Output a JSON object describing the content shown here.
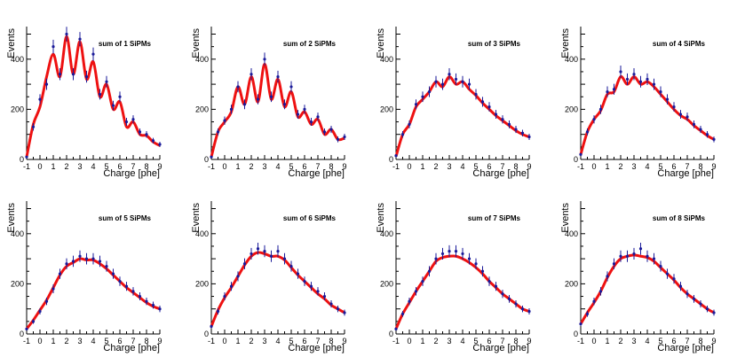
{
  "chart_data": [
    {
      "type": "line",
      "title": "sum of 1 SiPMs",
      "xlabel": "Charge [phe]",
      "ylabel": "Events",
      "xlim": [
        -1,
        9
      ],
      "ylim": [
        0,
        530
      ],
      "x": [
        -1.0,
        -0.5,
        0.0,
        0.5,
        1.0,
        1.5,
        2.0,
        2.5,
        3.0,
        3.5,
        4.0,
        4.5,
        5.0,
        5.5,
        6.0,
        6.5,
        7.0,
        7.5,
        8.0,
        8.5,
        9.0
      ],
      "series": [
        {
          "name": "data",
          "values": [
            10,
            130,
            240,
            300,
            450,
            340,
            500,
            340,
            480,
            330,
            420,
            260,
            310,
            215,
            250,
            150,
            160,
            110,
            100,
            75,
            60
          ]
        },
        {
          "name": "fit",
          "values": [
            10,
            140,
            210,
            330,
            420,
            330,
            490,
            340,
            470,
            320,
            390,
            250,
            300,
            200,
            230,
            130,
            150,
            100,
            95,
            70,
            55
          ]
        }
      ]
    },
    {
      "type": "line",
      "title": "sum of 2 SiPMs",
      "xlabel": "Charge [phe]",
      "ylabel": "Events",
      "xlim": [
        -1,
        9
      ],
      "ylim": [
        0,
        530
      ],
      "x": [
        -1.0,
        -0.5,
        0.0,
        0.5,
        1.0,
        1.5,
        2.0,
        2.5,
        3.0,
        3.5,
        4.0,
        4.5,
        5.0,
        5.5,
        6.0,
        6.5,
        7.0,
        7.5,
        8.0,
        8.5,
        9.0
      ],
      "series": [
        {
          "name": "data",
          "values": [
            10,
            110,
            155,
            200,
            290,
            220,
            340,
            240,
            400,
            250,
            330,
            220,
            290,
            180,
            200,
            150,
            170,
            110,
            120,
            80,
            90
          ]
        },
        {
          "name": "fit",
          "values": [
            10,
            110,
            150,
            190,
            290,
            220,
            330,
            230,
            380,
            240,
            320,
            210,
            270,
            170,
            190,
            140,
            160,
            100,
            120,
            80,
            85
          ]
        }
      ]
    },
    {
      "type": "line",
      "title": "sum of 3 SiPMs",
      "xlabel": "Charge [phe]",
      "ylabel": "Events",
      "xlim": [
        -1,
        9
      ],
      "ylim": [
        0,
        530
      ],
      "x": [
        -1.0,
        -0.5,
        0.0,
        0.5,
        1.0,
        1.5,
        2.0,
        2.5,
        3.0,
        3.5,
        4.0,
        4.5,
        5.0,
        5.5,
        6.0,
        6.5,
        7.0,
        7.5,
        8.0,
        8.5,
        9.0
      ],
      "series": [
        {
          "name": "data",
          "values": [
            15,
            100,
            140,
            220,
            250,
            270,
            310,
            300,
            340,
            320,
            310,
            300,
            260,
            230,
            210,
            180,
            160,
            140,
            120,
            105,
            90
          ]
        },
        {
          "name": "fit",
          "values": [
            12,
            100,
            140,
            210,
            240,
            270,
            310,
            290,
            330,
            300,
            310,
            280,
            255,
            225,
            200,
            175,
            155,
            135,
            115,
            100,
            90
          ]
        }
      ]
    },
    {
      "type": "line",
      "title": "sum of 4 SiPMs",
      "xlabel": "Charge [phe]",
      "ylabel": "Events",
      "xlim": [
        -1,
        9
      ],
      "ylim": [
        0,
        530
      ],
      "x": [
        -1.0,
        -0.5,
        0.0,
        0.5,
        1.0,
        1.5,
        2.0,
        2.5,
        3.0,
        3.5,
        4.0,
        4.5,
        5.0,
        5.5,
        6.0,
        6.5,
        7.0,
        7.5,
        8.0,
        8.5,
        9.0
      ],
      "series": [
        {
          "name": "data",
          "values": [
            20,
            110,
            160,
            200,
            270,
            280,
            350,
            320,
            340,
            310,
            320,
            300,
            270,
            240,
            210,
            180,
            170,
            140,
            120,
            100,
            80
          ]
        },
        {
          "name": "fit",
          "values": [
            20,
            110,
            160,
            195,
            260,
            270,
            330,
            300,
            330,
            300,
            310,
            290,
            260,
            230,
            200,
            175,
            160,
            135,
            115,
            95,
            80
          ]
        }
      ]
    },
    {
      "type": "line",
      "title": "sum of 5 SiPMs",
      "xlabel": "Charge [phe]",
      "ylabel": "Events",
      "xlim": [
        -1,
        9
      ],
      "ylim": [
        0,
        530
      ],
      "x": [
        -1.0,
        -0.5,
        0.0,
        0.5,
        1.0,
        1.5,
        2.0,
        2.5,
        3.0,
        3.5,
        4.0,
        4.5,
        5.0,
        5.5,
        6.0,
        6.5,
        7.0,
        7.5,
        8.0,
        8.5,
        9.0
      ],
      "series": [
        {
          "name": "data",
          "values": [
            20,
            50,
            90,
            130,
            180,
            240,
            280,
            290,
            310,
            300,
            300,
            290,
            270,
            240,
            210,
            190,
            170,
            150,
            130,
            115,
            100
          ]
        },
        {
          "name": "fit",
          "values": [
            20,
            55,
            95,
            135,
            185,
            235,
            270,
            285,
            300,
            295,
            295,
            280,
            260,
            235,
            210,
            185,
            165,
            145,
            125,
            110,
            100
          ]
        }
      ]
    },
    {
      "type": "line",
      "title": "sum of 6 SiPMs",
      "xlabel": "Charge [phe]",
      "ylabel": "Events",
      "xlim": [
        -1,
        9
      ],
      "ylim": [
        0,
        530
      ],
      "x": [
        -1.0,
        -0.5,
        0.0,
        0.5,
        1.0,
        1.5,
        2.0,
        2.5,
        3.0,
        3.5,
        4.0,
        4.5,
        5.0,
        5.5,
        6.0,
        6.5,
        7.0,
        7.5,
        8.0,
        8.5,
        9.0
      ],
      "series": [
        {
          "name": "data",
          "values": [
            30,
            90,
            150,
            190,
            230,
            280,
            320,
            340,
            330,
            310,
            330,
            300,
            270,
            240,
            210,
            190,
            170,
            150,
            120,
            100,
            85
          ]
        },
        {
          "name": "fit",
          "values": [
            30,
            95,
            145,
            185,
            230,
            275,
            310,
            325,
            320,
            310,
            310,
            295,
            265,
            235,
            210,
            185,
            160,
            140,
            115,
            100,
            85
          ]
        }
      ]
    },
    {
      "type": "line",
      "title": "sum of 7 SiPMs",
      "xlabel": "Charge [phe]",
      "ylabel": "Events",
      "xlim": [
        -1,
        9
      ],
      "ylim": [
        0,
        530
      ],
      "x": [
        -1.0,
        -0.5,
        0.0,
        0.5,
        1.0,
        1.5,
        2.0,
        2.5,
        3.0,
        3.5,
        4.0,
        4.5,
        5.0,
        5.5,
        6.0,
        6.5,
        7.0,
        7.5,
        8.0,
        8.5,
        9.0
      ],
      "series": [
        {
          "name": "data",
          "values": [
            20,
            80,
            130,
            170,
            210,
            250,
            300,
            320,
            330,
            330,
            320,
            300,
            280,
            250,
            210,
            190,
            160,
            140,
            120,
            100,
            90
          ]
        },
        {
          "name": "fit",
          "values": [
            20,
            80,
            125,
            170,
            210,
            250,
            290,
            305,
            310,
            310,
            300,
            285,
            265,
            240,
            210,
            185,
            160,
            140,
            120,
            100,
            90
          ]
        }
      ]
    },
    {
      "type": "line",
      "title": "sum of 8 SiPMs",
      "xlabel": "Charge [phe]",
      "ylabel": "Events",
      "xlim": [
        -1,
        9
      ],
      "ylim": [
        0,
        530
      ],
      "x": [
        -1.0,
        -0.5,
        0.0,
        0.5,
        1.0,
        1.5,
        2.0,
        2.5,
        3.0,
        3.5,
        4.0,
        4.5,
        5.0,
        5.5,
        6.0,
        6.5,
        7.0,
        7.5,
        8.0,
        8.5,
        9.0
      ],
      "series": [
        {
          "name": "data",
          "values": [
            40,
            80,
            130,
            170,
            230,
            280,
            310,
            310,
            320,
            340,
            310,
            300,
            270,
            240,
            220,
            190,
            160,
            140,
            120,
            100,
            85
          ]
        },
        {
          "name": "fit",
          "values": [
            40,
            85,
            125,
            170,
            225,
            270,
            300,
            310,
            315,
            310,
            305,
            290,
            265,
            240,
            215,
            185,
            160,
            140,
            120,
            100,
            85
          ]
        }
      ]
    }
  ]
}
